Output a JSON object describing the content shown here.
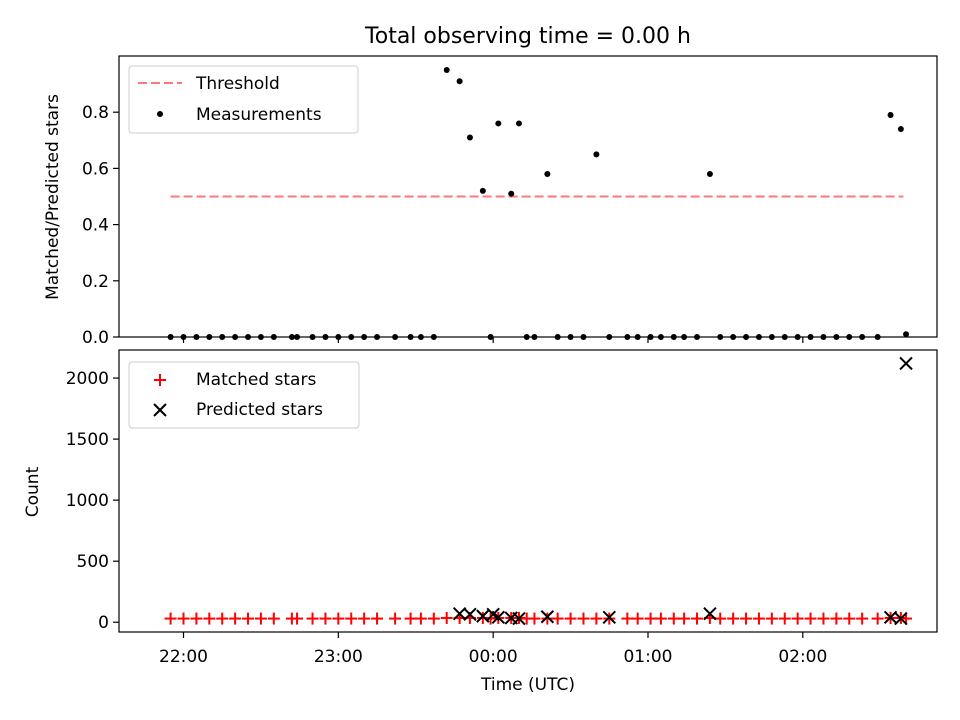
{
  "chart_data": [
    {
      "type": "scatter",
      "title": "Total observing time = 0.00 h",
      "xlabel": "",
      "ylabel": "Matched/Predicted stars",
      "xlim": [
        "21:35",
        "02:52"
      ],
      "ylim": [
        0,
        1.0
      ],
      "yticks": [
        0.0,
        0.2,
        0.4,
        0.6,
        0.8
      ],
      "ytick_labels": [
        "0.0",
        "0.2",
        "0.4",
        "0.6",
        "0.8"
      ],
      "xticks": [
        "22:00",
        "23:00",
        "00:00",
        "01:00",
        "02:00"
      ],
      "legend_position": "top-left",
      "threshold": {
        "name": "Threshold",
        "y": 0.5,
        "x_start": "21:55",
        "x_end": "02:39",
        "color": "#ff7777",
        "style": "dashed"
      },
      "measurements": {
        "name": "Measurements",
        "color": "#000000",
        "x": [
          "21:55",
          "22:00",
          "22:05",
          "22:10",
          "22:15",
          "22:20",
          "22:25",
          "22:30",
          "22:35",
          "22:42",
          "22:44",
          "22:50",
          "22:55",
          "23:00",
          "23:05",
          "23:10",
          "23:15",
          "23:22",
          "23:28",
          "23:32",
          "23:37",
          "23:42",
          "23:47",
          "23:51",
          "23:56",
          "23:59",
          "00:02",
          "00:07",
          "00:10",
          "00:13",
          "00:16",
          "00:21",
          "00:25",
          "00:30",
          "00:35",
          "00:40",
          "00:45",
          "00:52",
          "00:56",
          "01:01",
          "01:05",
          "01:10",
          "01:14",
          "01:19",
          "01:24",
          "01:28",
          "01:33",
          "01:38",
          "01:43",
          "01:48",
          "01:53",
          "01:58",
          "02:03",
          "02:08",
          "02:13",
          "02:18",
          "02:23",
          "02:29",
          "02:34",
          "02:38"
        ],
        "y": [
          0,
          0,
          0,
          0,
          0,
          0,
          0,
          0,
          0,
          0,
          0,
          0,
          0,
          0,
          0,
          0,
          0,
          0,
          0,
          0,
          0,
          0.95,
          0.91,
          0.71,
          0.52,
          0,
          0.76,
          0.51,
          0.76,
          0,
          0,
          0.58,
          0,
          0,
          0,
          0.65,
          0,
          0,
          0,
          0,
          0,
          0,
          0,
          0,
          0.58,
          0,
          0,
          0,
          0,
          0,
          0,
          0,
          0,
          0,
          0,
          0,
          0,
          0,
          0.79,
          0.74
        ]
      },
      "final_point": {
        "x": "02:40",
        "y": 0.01
      }
    },
    {
      "type": "scatter",
      "title": "",
      "xlabel": "Time (UTC)",
      "ylabel": "Count",
      "xlim": [
        "21:35",
        "02:52"
      ],
      "ylim": [
        -80,
        2230
      ],
      "yticks": [
        0,
        500,
        1000,
        1500,
        2000
      ],
      "ytick_labels": [
        "0",
        "500",
        "1000",
        "1500",
        "2000"
      ],
      "xticks": [
        "22:00",
        "23:00",
        "00:00",
        "01:00",
        "02:00"
      ],
      "legend_position": "top-left",
      "series": [
        {
          "name": "Matched stars",
          "marker": "plus",
          "color": "#ff0000",
          "x": [
            "21:55",
            "22:00",
            "22:05",
            "22:10",
            "22:15",
            "22:20",
            "22:25",
            "22:30",
            "22:35",
            "22:42",
            "22:44",
            "22:50",
            "22:55",
            "23:00",
            "23:05",
            "23:10",
            "23:15",
            "23:22",
            "23:28",
            "23:32",
            "23:37",
            "23:42",
            "23:47",
            "23:51",
            "23:56",
            "23:59",
            "00:02",
            "00:07",
            "00:10",
            "00:13",
            "00:16",
            "00:21",
            "00:25",
            "00:30",
            "00:35",
            "00:40",
            "00:45",
            "00:52",
            "00:56",
            "01:01",
            "01:05",
            "01:10",
            "01:14",
            "01:19",
            "01:24",
            "01:28",
            "01:33",
            "01:38",
            "01:43",
            "01:48",
            "01:53",
            "01:58",
            "02:03",
            "02:08",
            "02:13",
            "02:18",
            "02:23",
            "02:29",
            "02:34",
            "02:38",
            "02:40"
          ],
          "y": [
            30,
            30,
            30,
            30,
            30,
            30,
            30,
            30,
            30,
            30,
            30,
            30,
            30,
            30,
            30,
            30,
            30,
            30,
            30,
            30,
            30,
            35,
            35,
            35,
            35,
            30,
            35,
            35,
            35,
            30,
            30,
            30,
            30,
            30,
            30,
            30,
            30,
            30,
            30,
            30,
            30,
            30,
            30,
            30,
            35,
            30,
            30,
            30,
            30,
            30,
            30,
            30,
            30,
            30,
            30,
            30,
            30,
            30,
            35,
            35,
            30
          ]
        },
        {
          "name": "Predicted stars",
          "marker": "x",
          "color": "#000000",
          "x": [
            "23:47",
            "23:51",
            "23:56",
            "00:00",
            "00:02",
            "00:07",
            "00:10",
            "00:21",
            "00:45",
            "01:24",
            "02:34",
            "02:38",
            "02:40"
          ],
          "y": [
            70,
            65,
            50,
            65,
            40,
            35,
            30,
            45,
            40,
            70,
            40,
            30,
            2120
          ]
        }
      ]
    }
  ]
}
